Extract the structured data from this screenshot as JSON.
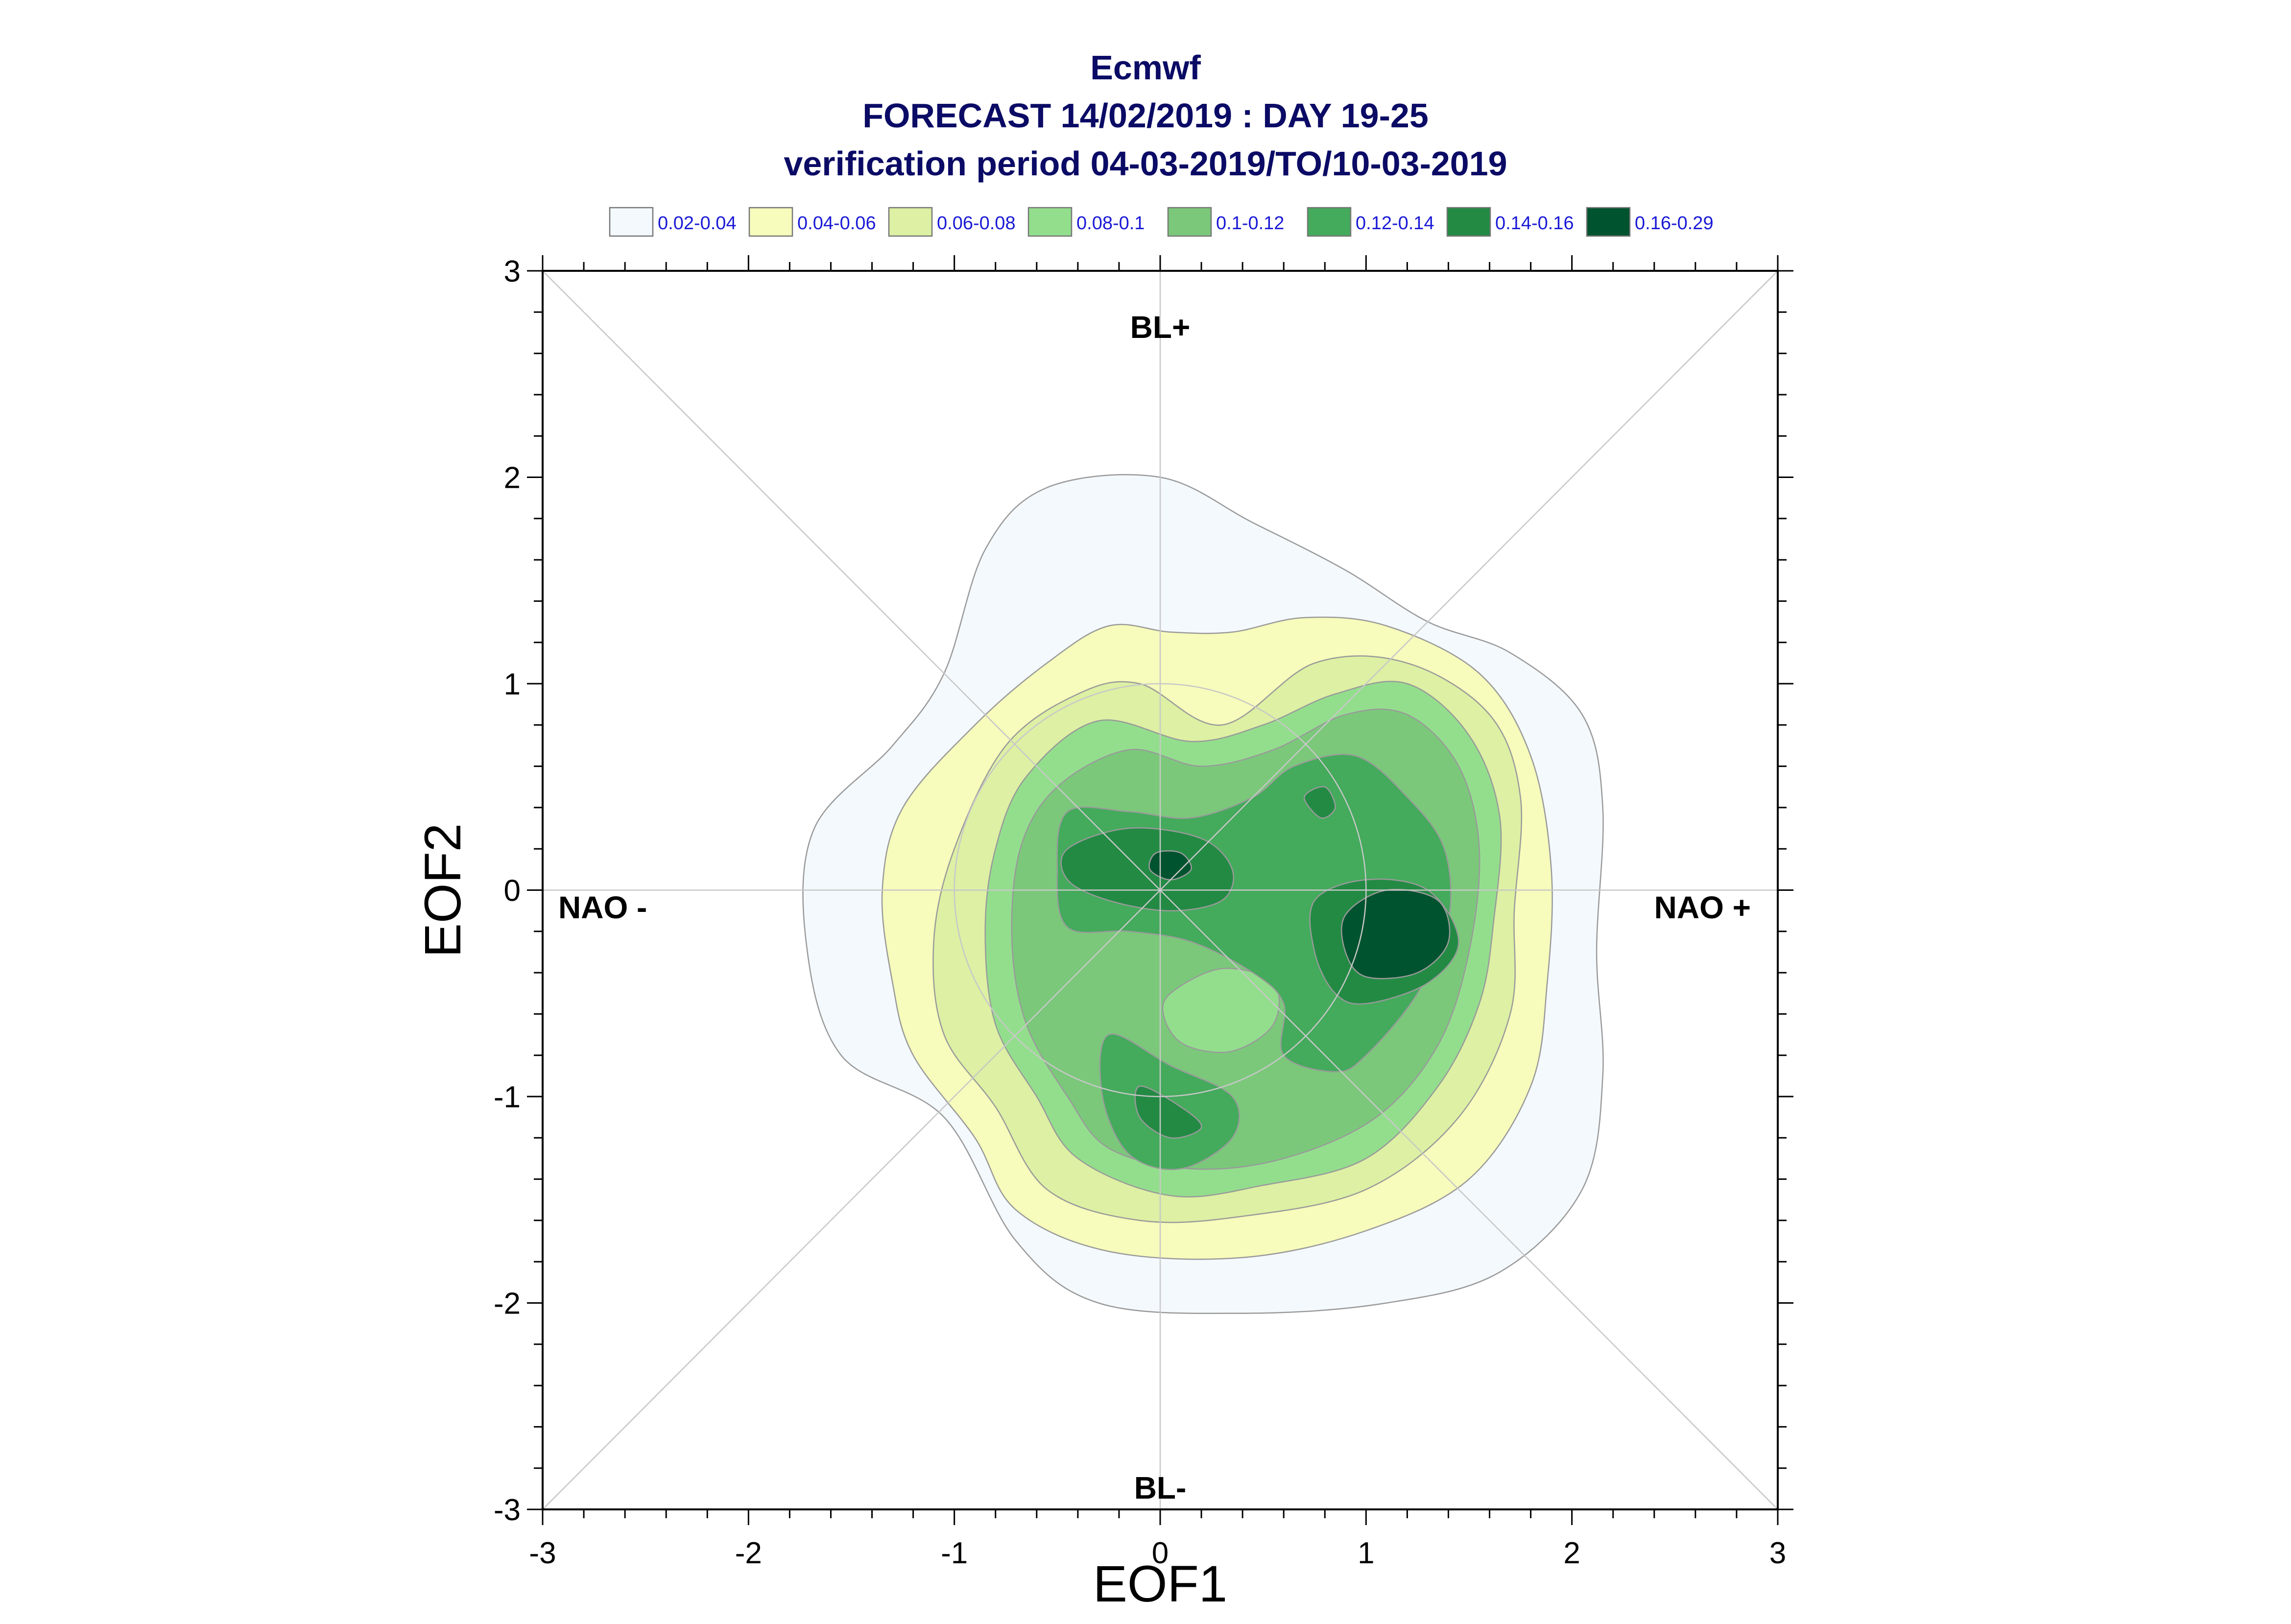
{
  "chart_data": {
    "type": "heatmap",
    "title": "Ecmwf",
    "subtitle": "FORECAST 14/02/2019 : DAY 19-25",
    "subtitle2": "verification period 04-03-2019/TO/10-03-2019",
    "xlabel": "EOF1",
    "ylabel": "EOF2",
    "xlim": [
      -3,
      3
    ],
    "ylim": [
      -3,
      3
    ],
    "x_ticks": [
      "-3",
      "-2",
      "-1",
      "0",
      "1",
      "2",
      "3"
    ],
    "y_ticks": [
      "-3",
      "-2",
      "-1",
      "0",
      "1",
      "2",
      "3"
    ],
    "grid": false,
    "legend_position": "top",
    "legend": [
      {
        "label": "0.02-0.04",
        "color": "#f4f9fd"
      },
      {
        "label": "0.04-0.06",
        "color": "#f7fbbb"
      },
      {
        "label": "0.06-0.08",
        "color": "#ddf0a4"
      },
      {
        "label": "0.08-0.1",
        "color": "#93de8d"
      },
      {
        "label": "0.1-0.12",
        "color": "#7bc87b"
      },
      {
        "label": "0.12-0.14",
        "color": "#44aa5c"
      },
      {
        "label": "0.14-0.16",
        "color": "#238a44"
      },
      {
        "label": "0.16-0.29",
        "color": "#00532f"
      }
    ],
    "regime_labels": {
      "top": "BL+",
      "bottom": "BL-",
      "left": "NAO -",
      "right": "NAO +"
    },
    "reference_circle_radius": 1,
    "density_peaks": [
      {
        "x": 1.15,
        "y": -0.25,
        "max_density": 0.29
      },
      {
        "x": 0.05,
        "y": 0.12,
        "max_density": 0.17
      },
      {
        "x": 0.75,
        "y": 0.42,
        "max_density": 0.15
      },
      {
        "x": 0.05,
        "y": -1.1,
        "max_density": 0.15
      },
      {
        "x": 0.85,
        "y": -0.77,
        "max_density": 0.15
      }
    ],
    "contours": [
      {
        "level": "0.02-0.04",
        "points": [
          [
            0.0,
            2.0
          ],
          [
            0.45,
            1.78
          ],
          [
            0.9,
            1.55
          ],
          [
            1.3,
            1.3
          ],
          [
            1.7,
            1.15
          ],
          [
            2.05,
            0.85
          ],
          [
            2.15,
            0.4
          ],
          [
            2.12,
            -0.3
          ],
          [
            2.15,
            -0.9
          ],
          [
            2.05,
            -1.45
          ],
          [
            1.65,
            -1.85
          ],
          [
            1.1,
            -2.0
          ],
          [
            0.4,
            -2.05
          ],
          [
            -0.3,
            -2.0
          ],
          [
            -0.7,
            -1.7
          ],
          [
            -1.05,
            -1.1
          ],
          [
            -1.55,
            -0.8
          ],
          [
            -1.72,
            -0.25
          ],
          [
            -1.68,
            0.3
          ],
          [
            -1.3,
            0.7
          ],
          [
            -1.05,
            1.05
          ],
          [
            -0.85,
            1.65
          ],
          [
            -0.55,
            1.95
          ]
        ]
      },
      {
        "level": "0.04-0.06",
        "points": [
          [
            -0.25,
            1.28
          ],
          [
            0.05,
            1.25
          ],
          [
            0.35,
            1.25
          ],
          [
            0.7,
            1.32
          ],
          [
            1.1,
            1.28
          ],
          [
            1.55,
            1.05
          ],
          [
            1.8,
            0.65
          ],
          [
            1.9,
            0.1
          ],
          [
            1.88,
            -0.45
          ],
          [
            1.8,
            -0.95
          ],
          [
            1.5,
            -1.4
          ],
          [
            1.0,
            -1.65
          ],
          [
            0.4,
            -1.78
          ],
          [
            -0.25,
            -1.75
          ],
          [
            -0.7,
            -1.55
          ],
          [
            -0.9,
            -1.2
          ],
          [
            -1.2,
            -0.8
          ],
          [
            -1.3,
            -0.45
          ],
          [
            -1.35,
            0.0
          ],
          [
            -1.25,
            0.4
          ],
          [
            -0.9,
            0.8
          ],
          [
            -0.55,
            1.1
          ]
        ]
      },
      {
        "level": "0.06-0.08",
        "points": [
          [
            -0.1,
            1.0
          ],
          [
            0.3,
            0.8
          ],
          [
            0.75,
            1.1
          ],
          [
            1.2,
            1.1
          ],
          [
            1.6,
            0.85
          ],
          [
            1.75,
            0.45
          ],
          [
            1.72,
            -0.1
          ],
          [
            1.7,
            -0.6
          ],
          [
            1.45,
            -1.1
          ],
          [
            1.0,
            -1.45
          ],
          [
            0.4,
            -1.58
          ],
          [
            -0.1,
            -1.6
          ],
          [
            -0.55,
            -1.45
          ],
          [
            -0.8,
            -1.05
          ],
          [
            -1.05,
            -0.7
          ],
          [
            -1.1,
            -0.25
          ],
          [
            -1.0,
            0.2
          ],
          [
            -0.75,
            0.7
          ],
          [
            -0.4,
            0.95
          ]
        ]
      },
      {
        "level": "0.08-0.1",
        "points": [
          [
            -0.3,
            0.82
          ],
          [
            0.15,
            0.72
          ],
          [
            0.5,
            0.8
          ],
          [
            0.85,
            0.95
          ],
          [
            1.2,
            1.0
          ],
          [
            1.5,
            0.75
          ],
          [
            1.65,
            0.35
          ],
          [
            1.62,
            -0.15
          ],
          [
            1.55,
            -0.55
          ],
          [
            1.35,
            -0.95
          ],
          [
            1.0,
            -1.3
          ],
          [
            0.5,
            -1.43
          ],
          [
            0.05,
            -1.48
          ],
          [
            -0.4,
            -1.3
          ],
          [
            -0.6,
            -1.0
          ],
          [
            -0.8,
            -0.65
          ],
          [
            -0.85,
            -0.2
          ],
          [
            -0.8,
            0.2
          ],
          [
            -0.65,
            0.55
          ]
        ]
      },
      {
        "level": "0.1-0.12",
        "points": [
          [
            -0.15,
            0.68
          ],
          [
            0.2,
            0.6
          ],
          [
            0.55,
            0.68
          ],
          [
            0.9,
            0.85
          ],
          [
            1.2,
            0.85
          ],
          [
            1.45,
            0.6
          ],
          [
            1.55,
            0.2
          ],
          [
            1.5,
            -0.3
          ],
          [
            1.35,
            -0.75
          ],
          [
            1.05,
            -1.1
          ],
          [
            0.6,
            -1.3
          ],
          [
            0.15,
            -1.35
          ],
          [
            -0.25,
            -1.25
          ],
          [
            -0.45,
            -1.0
          ],
          [
            -0.65,
            -0.65
          ],
          [
            -0.72,
            -0.25
          ],
          [
            -0.68,
            0.2
          ],
          [
            -0.5,
            0.5
          ]
        ]
      },
      {
        "level": "0.08-0.1",
        "points": [
          [
            0.05,
            -0.5
          ],
          [
            0.3,
            -0.38
          ],
          [
            0.55,
            -0.45
          ],
          [
            0.55,
            -0.65
          ],
          [
            0.35,
            -0.78
          ],
          [
            0.12,
            -0.75
          ],
          [
            0.02,
            -0.62
          ]
        ]
      },
      {
        "level": "0.12-0.14",
        "points": [
          [
            -0.45,
            0.38
          ],
          [
            -0.15,
            0.38
          ],
          [
            0.15,
            0.35
          ],
          [
            0.45,
            0.45
          ],
          [
            0.65,
            0.6
          ],
          [
            0.95,
            0.65
          ],
          [
            1.2,
            0.45
          ],
          [
            1.38,
            0.2
          ],
          [
            1.4,
            -0.15
          ],
          [
            1.25,
            -0.5
          ],
          [
            1.0,
            -0.8
          ],
          [
            0.85,
            -0.88
          ],
          [
            0.6,
            -0.8
          ],
          [
            0.6,
            -0.55
          ],
          [
            0.45,
            -0.4
          ],
          [
            0.15,
            -0.25
          ],
          [
            -0.15,
            -0.2
          ],
          [
            -0.45,
            -0.18
          ],
          [
            -0.5,
            0.1
          ]
        ]
      },
      {
        "level": "0.12-0.14",
        "points": [
          [
            -0.25,
            -0.7
          ],
          [
            0.05,
            -0.85
          ],
          [
            0.35,
            -1.0
          ],
          [
            0.35,
            -1.2
          ],
          [
            0.1,
            -1.35
          ],
          [
            -0.15,
            -1.28
          ],
          [
            -0.28,
            -1.0
          ]
        ]
      },
      {
        "level": "0.14-0.16",
        "points": [
          [
            -0.45,
            0.2
          ],
          [
            -0.15,
            0.3
          ],
          [
            0.2,
            0.25
          ],
          [
            0.35,
            0.1
          ],
          [
            0.3,
            -0.05
          ],
          [
            0.05,
            -0.1
          ],
          [
            -0.25,
            -0.05
          ],
          [
            -0.45,
            0.05
          ]
        ]
      },
      {
        "level": "0.14-0.16",
        "points": [
          [
            0.75,
            -0.05
          ],
          [
            1.0,
            0.05
          ],
          [
            1.3,
            0.0
          ],
          [
            1.45,
            -0.25
          ],
          [
            1.3,
            -0.45
          ],
          [
            1.0,
            -0.55
          ],
          [
            0.85,
            -0.5
          ],
          [
            0.75,
            -0.3
          ]
        ]
      },
      {
        "level": "0.14-0.16",
        "points": [
          [
            0.7,
            0.45
          ],
          [
            0.8,
            0.5
          ],
          [
            0.85,
            0.4
          ],
          [
            0.78,
            0.35
          ]
        ]
      },
      {
        "level": "0.14-0.16",
        "points": [
          [
            -0.1,
            -0.95
          ],
          [
            0.1,
            -1.05
          ],
          [
            0.2,
            -1.15
          ],
          [
            0.05,
            -1.2
          ],
          [
            -0.1,
            -1.1
          ]
        ]
      },
      {
        "level": "0.16-0.29",
        "points": [
          [
            -0.02,
            0.18
          ],
          [
            0.1,
            0.18
          ],
          [
            0.15,
            0.1
          ],
          [
            0.05,
            0.05
          ],
          [
            -0.05,
            0.1
          ]
        ]
      },
      {
        "level": "0.16-0.29",
        "points": [
          [
            0.9,
            -0.12
          ],
          [
            1.1,
            0.0
          ],
          [
            1.35,
            -0.05
          ],
          [
            1.4,
            -0.25
          ],
          [
            1.25,
            -0.4
          ],
          [
            1.0,
            -0.42
          ],
          [
            0.9,
            -0.3
          ]
        ]
      }
    ]
  }
}
